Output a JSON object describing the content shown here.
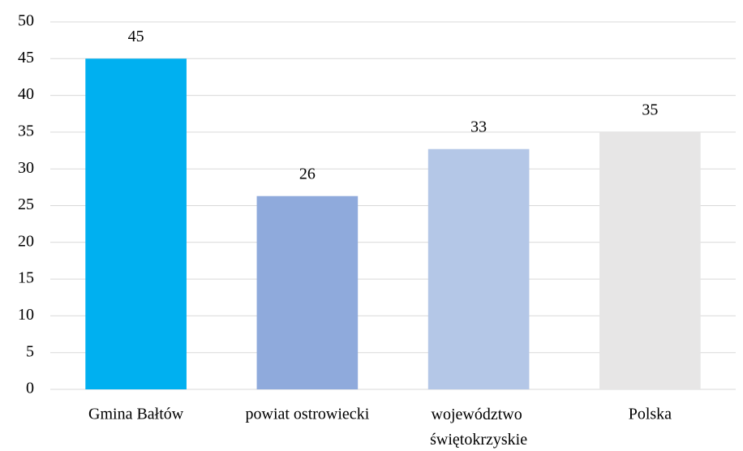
{
  "chart_data": {
    "type": "bar",
    "categories": [
      "Gmina Bałtów",
      "powiat ostrowiecki",
      "województwo świętokrzyskie",
      "Polska"
    ],
    "values": [
      45,
      26.3,
      32.7,
      35
    ],
    "value_labels": [
      "45",
      "26",
      "33",
      "35"
    ],
    "colors": [
      "#00b0f0",
      "#8faadc",
      "#b4c7e7",
      "#e7e6e6"
    ],
    "ylim": [
      0,
      50
    ],
    "yticks": [
      0,
      5,
      10,
      15,
      20,
      25,
      30,
      35,
      40,
      45,
      50
    ],
    "grid": true
  }
}
